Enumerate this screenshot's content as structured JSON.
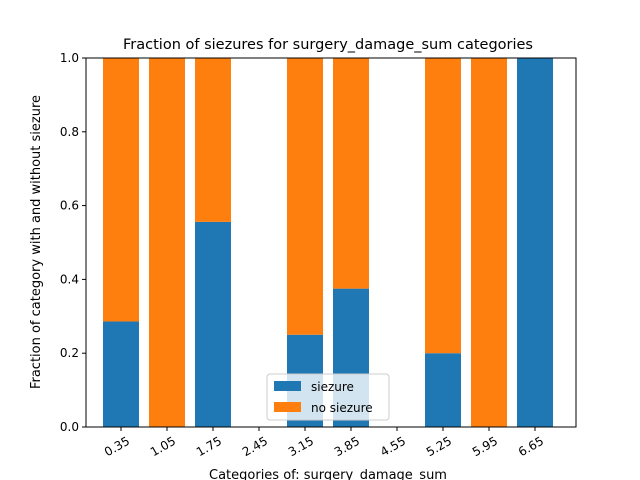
{
  "chart_data": {
    "type": "bar",
    "stacked": true,
    "title": "Fraction of siezures for surgery_damage_sum categories",
    "xlabel": "Categories of: surgery_damage_sum",
    "ylabel": "Fraction of category with and without siezure",
    "categories": [
      "0.35",
      "1.05",
      "1.75",
      "2.45",
      "3.15",
      "3.85",
      "4.55",
      "5.25",
      "5.95",
      "6.65"
    ],
    "ylim": [
      0,
      1.0
    ],
    "yticks": [
      "0.0",
      "0.2",
      "0.4",
      "0.6",
      "0.8",
      "1.0"
    ],
    "grid": false,
    "legend_position": "lower-center",
    "series": [
      {
        "name": "siezure",
        "color": "#1f77b4",
        "values": [
          0.286,
          0,
          0.556,
          0,
          0.25,
          0.375,
          0,
          0.2,
          0,
          1.0
        ]
      },
      {
        "name": "no siezure",
        "color": "#ff7f0e",
        "values": [
          0.714,
          1.0,
          0.444,
          0,
          0.75,
          0.625,
          0,
          0.8,
          1.0,
          0
        ]
      }
    ]
  }
}
